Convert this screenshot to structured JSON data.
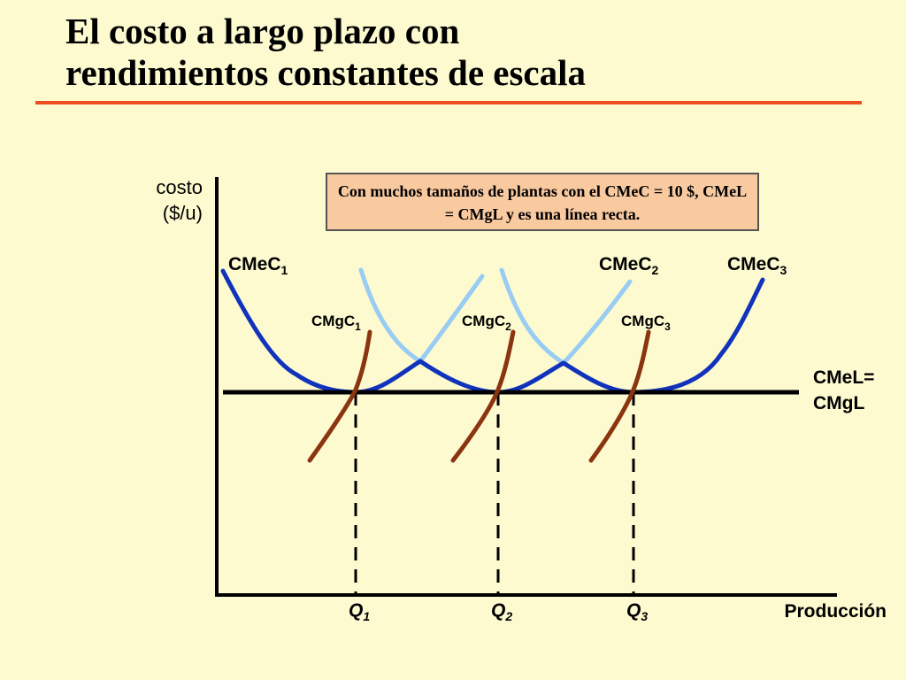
{
  "title": {
    "line1": "El costo a largo plazo con",
    "line2": "rendimientos constantes de escala"
  },
  "note": "Con muchos tamaños de plantas con el CMeC = 10 $, CMeL = CMgL y es una línea recta.",
  "axes": {
    "y_label_line1": "costo",
    "y_label_line2": "($/u)",
    "x_label": "Producción"
  },
  "curves": {
    "cmec1": {
      "base": "CMeC",
      "sub": "1"
    },
    "cmec2": {
      "base": "CMeC",
      "sub": "2"
    },
    "cmec3": {
      "base": "CMeC",
      "sub": "3"
    },
    "cmgc1": {
      "base": "CMgC",
      "sub": "1"
    },
    "cmgc2": {
      "base": "CMgC",
      "sub": "2"
    },
    "cmgc3": {
      "base": "CMgC",
      "sub": "3"
    },
    "long_run_line1": "CMeL=",
    "long_run_line2": "CMgL"
  },
  "quantities": {
    "q1": {
      "base": "Q",
      "sub": "1"
    },
    "q2": {
      "base": "Q",
      "sub": "2"
    },
    "q3": {
      "base": "Q",
      "sub": "3"
    }
  },
  "colors": {
    "average_cost": "#1133bb",
    "average_cost_light": "#99ccf2",
    "marginal_cost": "#8b3510",
    "title_rule": "#ee4b1e",
    "background": "#fdfad0"
  }
}
